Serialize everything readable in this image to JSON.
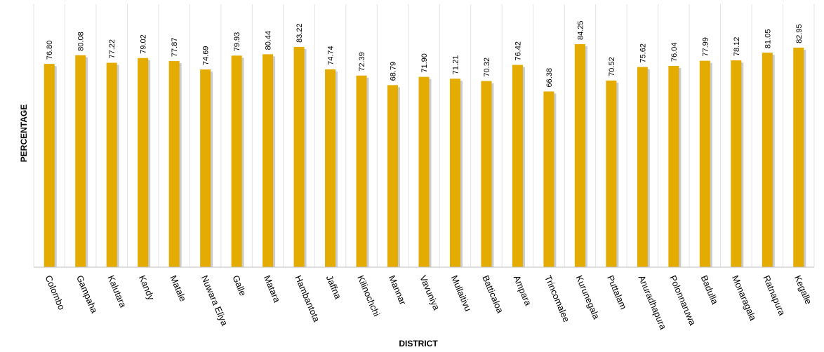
{
  "chart_data": {
    "type": "bar",
    "xlabel": "DISTRICT",
    "ylabel": "PERCENTAGE",
    "categories": [
      "Colombo",
      "Gampaha",
      "Kalutara",
      "Kandy",
      "Matale",
      "Nuwara Eliya",
      "Galle",
      "Matara",
      "Hambantota",
      "Jaffna",
      "Kilinochchi",
      "Mannar",
      "Vavuniya",
      "Mullaitivu",
      "Batticaloa",
      "Ampara",
      "Trincomalee",
      "Kurunegala",
      "Puttalam",
      "Anuradhapura",
      "Polonnaruwa",
      "Badulla",
      "Monaragala",
      "Ratnapura",
      "Kegalle"
    ],
    "values": [
      76.8,
      80.08,
      77.22,
      79.02,
      77.87,
      74.69,
      79.93,
      80.44,
      83.22,
      74.74,
      72.39,
      68.79,
      71.9,
      71.21,
      70.32,
      76.42,
      66.38,
      84.25,
      70.52,
      75.62,
      76.04,
      77.99,
      78.12,
      81.05,
      82.95
    ],
    "value_labels": [
      "76.80",
      "80.08",
      "77.22",
      "79.02",
      "77.87",
      "74.69",
      "79.93",
      "80.44",
      "83.22",
      "74.74",
      "72.39",
      "68.79",
      "71.90",
      "71.21",
      "70.32",
      "76.42",
      "66.38",
      "84.25",
      "70.52",
      "75.62",
      "76.04",
      "77.99",
      "78.12",
      "81.05",
      "82.95"
    ],
    "ylim": [
      0,
      84.25
    ],
    "grid": "vertical",
    "legend": "none",
    "colors": {
      "bar": "#e4ab00",
      "bar_shadow": "#cccccc",
      "grid": "#e3e3e3",
      "axis": "#bfbfbf"
    }
  }
}
